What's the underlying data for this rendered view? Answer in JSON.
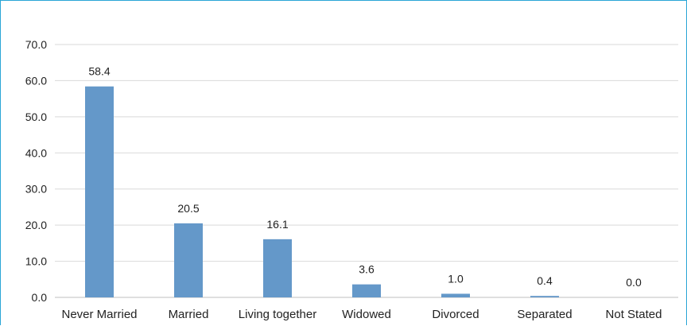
{
  "chart_data": {
    "type": "bar",
    "title": "",
    "xlabel": "",
    "ylabel": "",
    "categories": [
      "Never Married",
      "Married",
      "Living together",
      "Widowed",
      "Divorced",
      "Separated",
      "Not Stated"
    ],
    "values": [
      58.4,
      20.5,
      16.1,
      3.6,
      1.0,
      0.4,
      0.0
    ],
    "data_labels": [
      "58.4",
      "20.5",
      "16.1",
      "3.6",
      "1.0",
      "0.4",
      "0.0"
    ],
    "yticks": [
      "0.0",
      "10.0",
      "20.0",
      "30.0",
      "40.0",
      "50.0",
      "60.0",
      "70.0"
    ],
    "ylim": [
      0,
      70
    ],
    "grid": true,
    "legend": "none",
    "bar_color": "#6498c9",
    "frame_color": "#2aa6d6"
  }
}
